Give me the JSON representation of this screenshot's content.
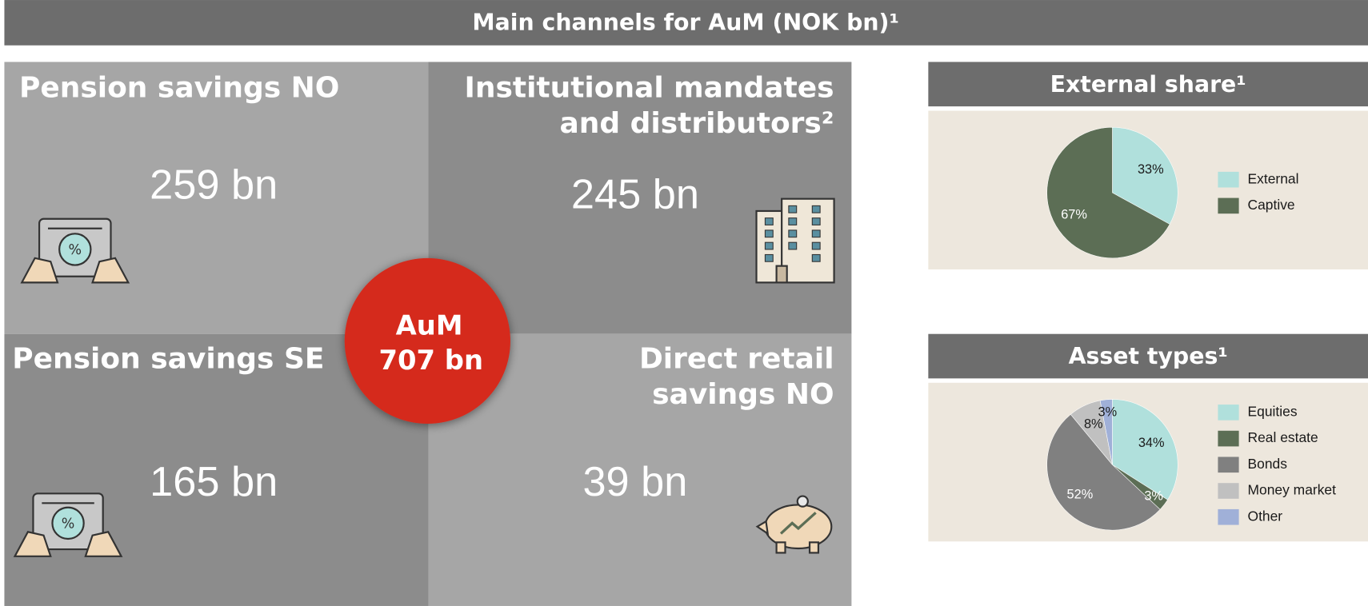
{
  "header": {
    "title": "Main channels for AuM (NOK bn)¹"
  },
  "quadrants": [
    {
      "title": [
        "Pension savings NO"
      ],
      "value": "259 bn"
    },
    {
      "title": [
        "Institutional mandates",
        "and distributors²"
      ],
      "value": "245 bn"
    },
    {
      "title": [
        "Pension savings SE"
      ],
      "value": "165 bn"
    },
    {
      "title": [
        "Direct retail",
        "savings NO"
      ],
      "value": "39 bn"
    }
  ],
  "center": {
    "label": "AuM",
    "value": "707 bn"
  },
  "chart_data": [
    {
      "type": "pie",
      "title": "External share¹",
      "categories": [
        "External",
        "Captive"
      ],
      "values": [
        33,
        67
      ],
      "value_labels": [
        "33%",
        "67%"
      ],
      "colors": [
        "#b0e0dc",
        "#5c6e55"
      ]
    },
    {
      "type": "pie",
      "title": "Asset types¹",
      "categories": [
        "Equities",
        "Real estate",
        "Bonds",
        "Money market",
        "Other"
      ],
      "values": [
        34,
        3,
        52,
        8,
        3
      ],
      "value_labels": [
        "34%",
        "3%",
        "52%",
        "8%",
        "3%"
      ],
      "colors": [
        "#b0e0dc",
        "#5c6e55",
        "#808080",
        "#c0c0c0",
        "#a0b0d8"
      ]
    }
  ]
}
